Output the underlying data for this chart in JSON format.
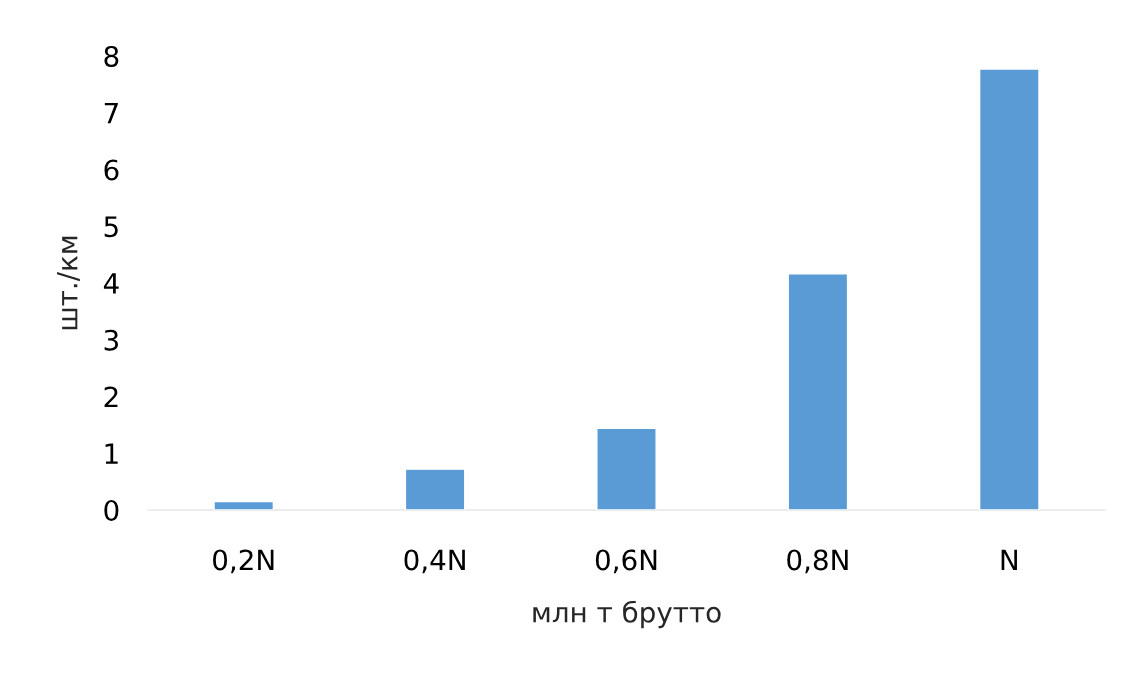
{
  "chart_data": {
    "type": "bar",
    "xlabel": "млн т брутто",
    "ylabel": "шт./км",
    "categories": [
      "0,2N",
      "0,4N",
      "0,6N",
      "0,8N",
      "N"
    ],
    "values": [
      0.15,
      0.72,
      1.44,
      4.16,
      7.77
    ],
    "color": "#5b9bd5",
    "ylim": [
      0,
      8
    ],
    "yticks": [
      0,
      1,
      2,
      3,
      4,
      5,
      6,
      7,
      8
    ],
    "grid": false
  }
}
